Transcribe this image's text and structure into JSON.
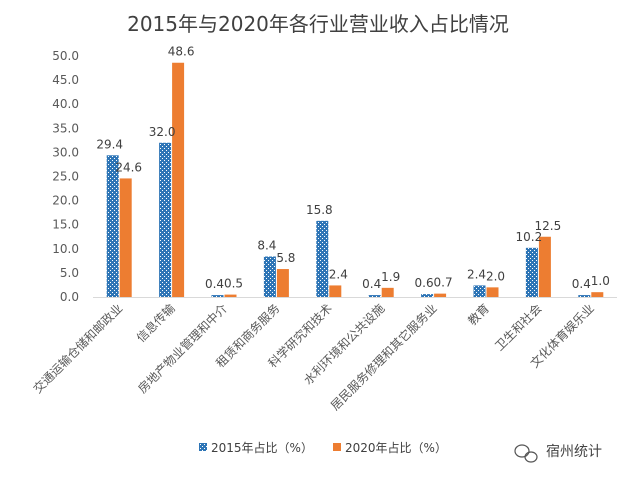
{
  "chart_data": {
    "type": "bar",
    "title": "2015年与2020年各行业营业收入占比情况",
    "xlabel": "",
    "ylabel": "",
    "ylim": [
      0,
      50
    ],
    "yticks": [
      "0.0",
      "5.0",
      "10.0",
      "15.0",
      "20.0",
      "25.0",
      "30.0",
      "35.0",
      "40.0",
      "45.0",
      "50.0"
    ],
    "grid": false,
    "legend_position": "bottom",
    "categories": [
      "交通运输仓储和邮政业",
      "信息传输",
      "房地产物业管理和中介",
      "租赁和商务服务",
      "科学研究和技术",
      "水利环境和公共设施",
      "居民服务修理和其它服务业",
      "教育",
      "卫生和社会",
      "文化体育娱乐业"
    ],
    "series": [
      {
        "name": "2015年占比（%）",
        "values": [
          29.4,
          32.0,
          0.4,
          8.4,
          15.8,
          0.4,
          0.6,
          2.4,
          10.2,
          0.4
        ],
        "labels": [
          "29.4",
          "32.0",
          "0.4",
          "8.4",
          "15.8",
          "0.4",
          "0.6",
          "2.4",
          "10.2",
          "0.4"
        ],
        "color": "#2E75B6"
      },
      {
        "name": "2020年占比（%）",
        "values": [
          24.6,
          48.6,
          0.5,
          5.8,
          2.4,
          1.9,
          0.7,
          2.0,
          12.5,
          1.0
        ],
        "labels": [
          "24.6",
          "48.6",
          "0.5",
          "5.8",
          "2.4",
          "1.9",
          "0.7",
          "2.0",
          "12.5",
          "1.0"
        ],
        "color": "#ED7D31"
      }
    ]
  },
  "watermark": {
    "text": "宿州统计"
  }
}
